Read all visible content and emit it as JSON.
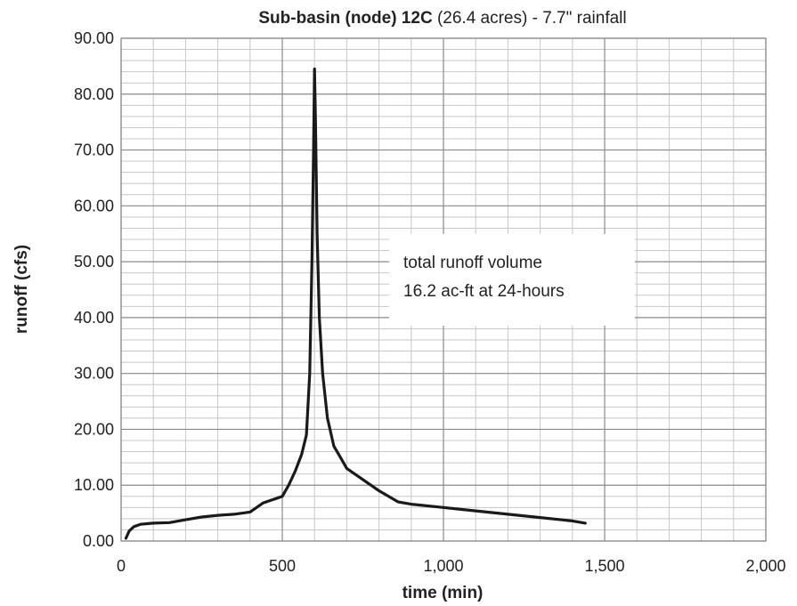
{
  "chart_data": {
    "type": "line",
    "title_bold": "Sub-basin (node) 12C",
    "title_rest": " (26.4 acres) - 7.7\" rainfall",
    "xlabel": "time (min)",
    "ylabel": "runoff (cfs)",
    "xlim": [
      0,
      2000
    ],
    "ylim": [
      0,
      90
    ],
    "x_ticks": [
      0,
      500,
      1000,
      1500,
      2000
    ],
    "x_tick_labels": [
      "0",
      "500",
      "1,000",
      "1,500",
      "2,000"
    ],
    "y_ticks": [
      0,
      10,
      20,
      30,
      40,
      50,
      60,
      70,
      80,
      90
    ],
    "y_tick_labels": [
      "0.00",
      "10.00",
      "20.00",
      "30.00",
      "40.00",
      "50.00",
      "60.00",
      "70.00",
      "80.00",
      "90.00"
    ],
    "grid": true,
    "series": [
      {
        "color": "#1a1a1a",
        "x": [
          15,
          25,
          40,
          60,
          80,
          100,
          150,
          200,
          250,
          300,
          350,
          400,
          440,
          460,
          480,
          500,
          520,
          540,
          560,
          575,
          585,
          592,
          597,
          600,
          603,
          608,
          615,
          625,
          640,
          660,
          680,
          700,
          750,
          800,
          860,
          900,
          1000,
          1100,
          1200,
          1300,
          1400,
          1440
        ],
        "y": [
          0.5,
          1.8,
          2.6,
          3.0,
          3.1,
          3.2,
          3.3,
          3.8,
          4.3,
          4.6,
          4.8,
          5.2,
          6.8,
          7.2,
          7.6,
          8.0,
          10.0,
          12.5,
          15.5,
          19.0,
          30.0,
          50.0,
          70.0,
          84.5,
          75.0,
          55.0,
          40.0,
          30.0,
          22.0,
          17.0,
          15.0,
          13.0,
          11.0,
          9.0,
          7.0,
          6.6,
          6.0,
          5.4,
          4.8,
          4.2,
          3.6,
          3.2
        ]
      }
    ],
    "annotation": {
      "line1": "total runoff volume",
      "line2": "16.2 ac-ft at 24-hours"
    }
  }
}
